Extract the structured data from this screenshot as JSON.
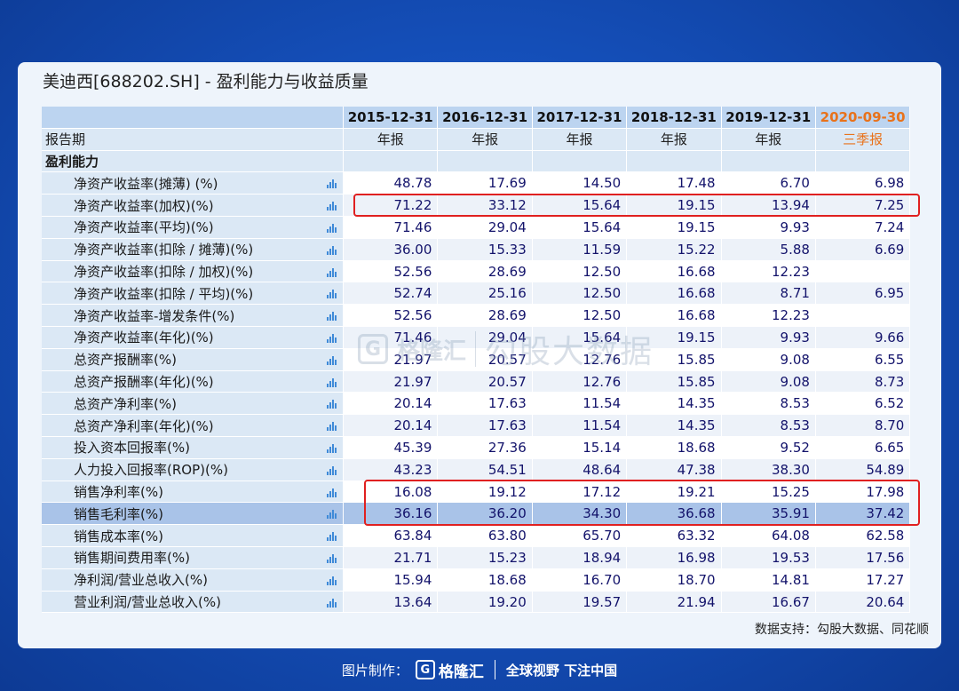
{
  "title": "美迪西[688202.SH] - 盈利能力与收益质量",
  "columns": [
    {
      "date": "2015-12-31",
      "period": "年报",
      "highlight": false
    },
    {
      "date": "2016-12-31",
      "period": "年报",
      "highlight": false
    },
    {
      "date": "2017-12-31",
      "period": "年报",
      "highlight": false
    },
    {
      "date": "2018-12-31",
      "period": "年报",
      "highlight": false
    },
    {
      "date": "2019-12-31",
      "period": "年报",
      "highlight": false
    },
    {
      "date": "2020-09-30",
      "period": "三季报",
      "highlight": true
    }
  ],
  "period_label": "报告期",
  "section_label": "盈利能力",
  "rows": [
    {
      "label": "净资产收益率(摊薄) (%)",
      "values": [
        "48.78",
        "17.69",
        "14.50",
        "17.48",
        "6.70",
        "6.98"
      ]
    },
    {
      "label": "净资产收益率(加权)(%)",
      "values": [
        "71.22",
        "33.12",
        "15.64",
        "19.15",
        "13.94",
        "7.25"
      ]
    },
    {
      "label": "净资产收益率(平均)(%)",
      "values": [
        "71.46",
        "29.04",
        "15.64",
        "19.15",
        "9.93",
        "7.24"
      ]
    },
    {
      "label": "净资产收益率(扣除 / 摊薄)(%)",
      "values": [
        "36.00",
        "15.33",
        "11.59",
        "15.22",
        "5.88",
        "6.69"
      ]
    },
    {
      "label": "净资产收益率(扣除 / 加权)(%)",
      "values": [
        "52.56",
        "28.69",
        "12.50",
        "16.68",
        "12.23",
        ""
      ]
    },
    {
      "label": "净资产收益率(扣除 / 平均)(%)",
      "values": [
        "52.74",
        "25.16",
        "12.50",
        "16.68",
        "8.71",
        "6.95"
      ]
    },
    {
      "label": "净资产收益率-增发条件(%)",
      "values": [
        "52.56",
        "28.69",
        "12.50",
        "16.68",
        "12.23",
        ""
      ]
    },
    {
      "label": "净资产收益率(年化)(%)",
      "values": [
        "71.46",
        "29.04",
        "15.64",
        "19.15",
        "9.93",
        "9.66"
      ]
    },
    {
      "label": "总资产报酬率(%)",
      "values": [
        "21.97",
        "20.57",
        "12.76",
        "15.85",
        "9.08",
        "6.55"
      ]
    },
    {
      "label": "总资产报酬率(年化)(%)",
      "values": [
        "21.97",
        "20.57",
        "12.76",
        "15.85",
        "9.08",
        "8.73"
      ]
    },
    {
      "label": "总资产净利率(%)",
      "values": [
        "20.14",
        "17.63",
        "11.54",
        "14.35",
        "8.53",
        "6.52"
      ]
    },
    {
      "label": "总资产净利率(年化)(%)",
      "values": [
        "20.14",
        "17.63",
        "11.54",
        "14.35",
        "8.53",
        "8.70"
      ]
    },
    {
      "label": "投入资本回报率(%)",
      "values": [
        "45.39",
        "27.36",
        "15.14",
        "18.68",
        "9.52",
        "6.65"
      ]
    },
    {
      "label": "人力投入回报率(ROP)(%)",
      "values": [
        "43.23",
        "54.51",
        "48.64",
        "47.38",
        "38.30",
        "54.89"
      ]
    },
    {
      "label": "销售净利率(%)",
      "values": [
        "16.08",
        "19.12",
        "17.12",
        "19.21",
        "15.25",
        "17.98"
      ]
    },
    {
      "label": "销售毛利率(%)",
      "values": [
        "36.16",
        "36.20",
        "34.30",
        "36.68",
        "35.91",
        "37.42"
      ]
    },
    {
      "label": "销售成本率(%)",
      "values": [
        "63.84",
        "63.80",
        "65.70",
        "63.32",
        "64.08",
        "62.58"
      ]
    },
    {
      "label": "销售期间费用率(%)",
      "values": [
        "21.71",
        "15.23",
        "18.94",
        "16.98",
        "19.53",
        "17.56"
      ]
    },
    {
      "label": "净利润/营业总收入(%)",
      "values": [
        "15.94",
        "18.68",
        "16.70",
        "18.70",
        "14.81",
        "17.27"
      ]
    },
    {
      "label": "营业利润/营业总收入(%)",
      "values": [
        "13.64",
        "19.20",
        "19.57",
        "21.94",
        "16.67",
        "20.64"
      ]
    }
  ],
  "source": "数据支持：勾股大数据、同花顺",
  "watermark": {
    "logo": "G",
    "brand": "格隆汇",
    "text": "勾股大数据"
  },
  "footer": {
    "credit_label": "图片制作：",
    "logo": "G",
    "brand": "格隆汇",
    "slogan": "全球视野 下注中国"
  },
  "colors": {
    "accent_orange": "#e8721b",
    "highlight_row": "#a9c3e8",
    "red_box": "#e02020",
    "value_text": "#13136b"
  }
}
